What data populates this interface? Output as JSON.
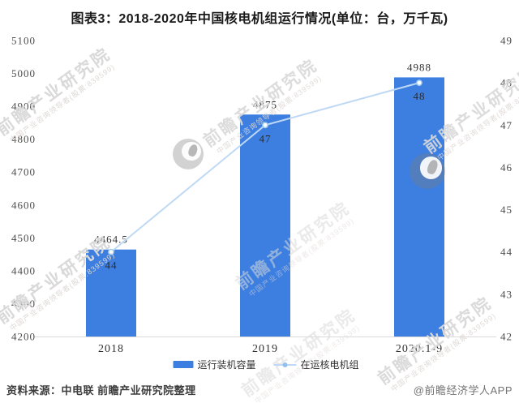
{
  "title": "图表3：2018-2020年中国核电机组运行情况(单位：台，万千瓦)",
  "chart_data": {
    "type": "bar",
    "subtype": "bar+line-dual-axis",
    "categories": [
      "2018",
      "2019",
      "2020.1-9"
    ],
    "series": [
      {
        "name": "运行装机容量",
        "type": "bar",
        "axis": "left",
        "unit": "万千瓦",
        "values": [
          4464.5,
          4875,
          4988
        ]
      },
      {
        "name": "在运核电机组",
        "type": "line",
        "axis": "right",
        "unit": "台",
        "values": [
          44,
          47,
          48
        ]
      }
    ],
    "left_axis": {
      "min": 4200,
      "max": 5100,
      "ticks": [
        5100,
        5000,
        4900,
        4800,
        4700,
        4600,
        4500,
        4400,
        4300,
        4200
      ]
    },
    "right_axis": {
      "min": 42,
      "max": 49,
      "ticks": [
        49,
        48,
        47,
        46,
        45,
        44,
        43,
        42
      ]
    },
    "grid": false,
    "legend_position": "bottom"
  },
  "colors": {
    "bar": "#3d7fe1",
    "line": "#bfd9f4",
    "marker_fill": "#ffffff",
    "marker_stroke": "#9ec9ef",
    "axis_line": "#d9d9d9",
    "tick_text": "#4d4d4d",
    "label_text": "#333333"
  },
  "footer": {
    "source": "资料来源：中电联 前瞻产业研究院整理",
    "credit": "@前瞻经济学人APP"
  },
  "watermark": {
    "big": "前瞻产业研究院",
    "small": "中国产业咨询领导者(股票:839599)"
  }
}
